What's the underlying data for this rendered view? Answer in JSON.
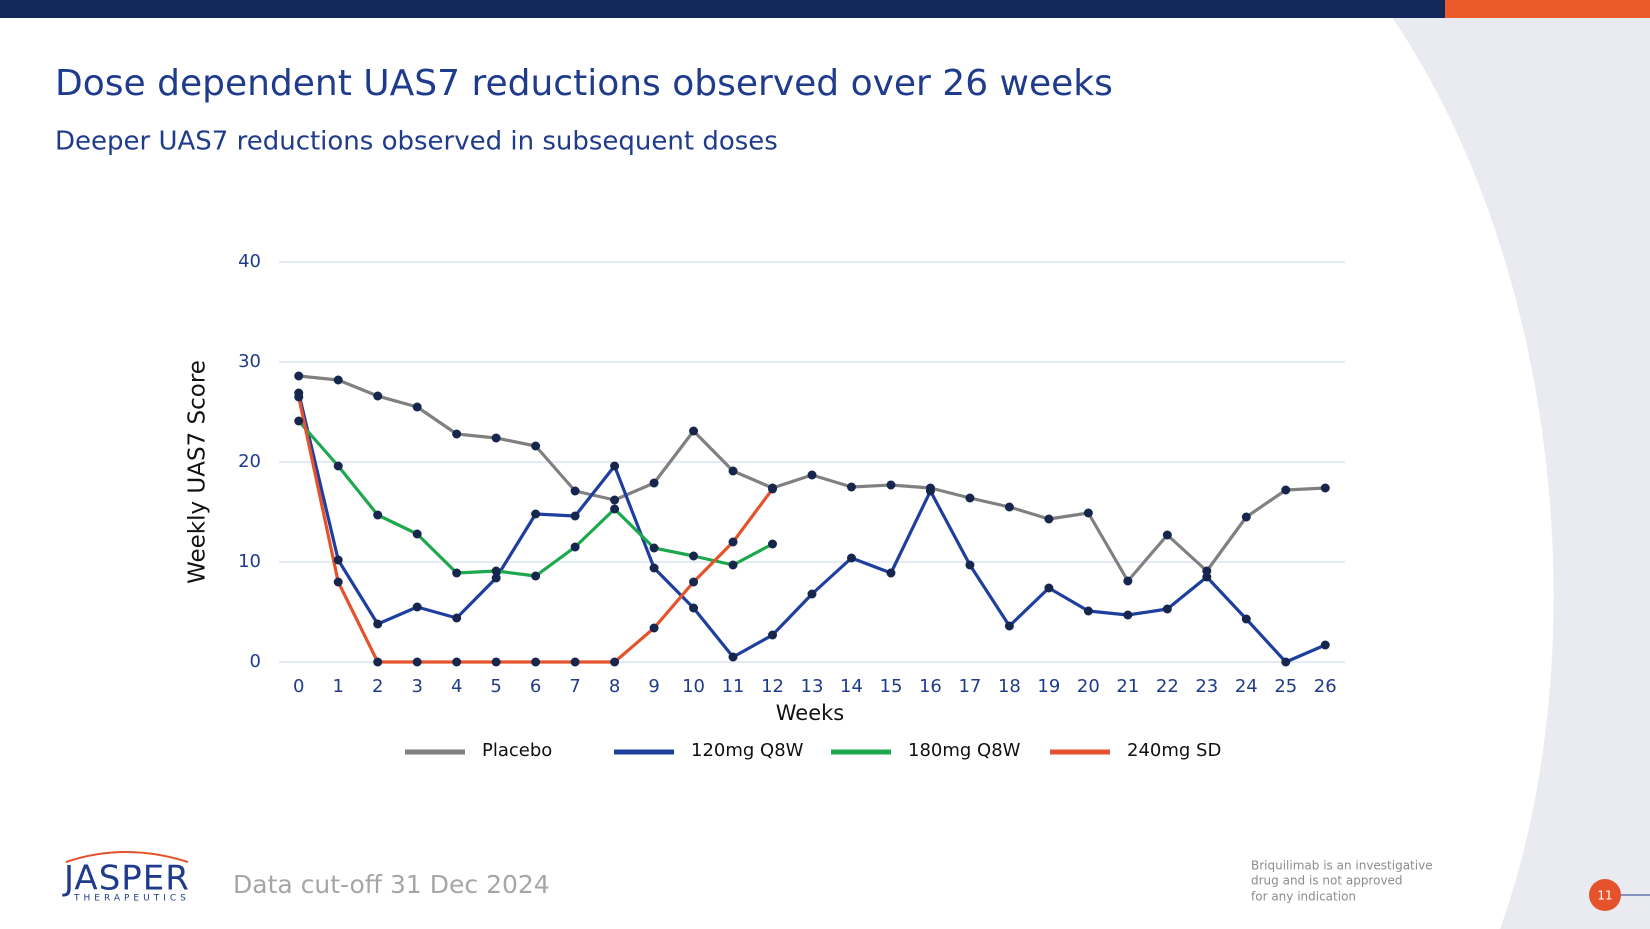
{
  "chart_data": {
    "type": "line",
    "title": "Dose dependent UAS7 reductions observed over 26 weeks",
    "subtitle": "Deeper UAS7 reductions observed in subsequent doses",
    "x_label": "Weeks",
    "y_label": "Weekly UAS7 Score",
    "categories": [
      "0",
      "1",
      "2",
      "3",
      "4",
      "5",
      "6",
      "7",
      "8",
      "9",
      "10",
      "11",
      "12",
      "13",
      "14",
      "15",
      "16",
      "17",
      "18",
      "19",
      "20",
      "21",
      "22",
      "23",
      "24",
      "25",
      "26"
    ],
    "ylim": [
      0,
      40
    ],
    "yticks": [
      0,
      10,
      20,
      30,
      40
    ],
    "grid": true,
    "marker_color": "#16264d",
    "series": [
      {
        "name": "Placebo",
        "color": "#808080",
        "values": [
          28.6,
          28.2,
          26.6,
          25.5,
          22.8,
          22.4,
          21.6,
          17.1,
          16.2,
          17.9,
          23.1,
          19.1,
          17.4,
          18.7,
          17.5,
          17.7,
          17.4,
          16.4,
          15.5,
          14.3,
          14.9,
          8.1,
          12.7,
          9.1,
          14.5,
          17.2,
          17.4
        ]
      },
      {
        "name": "120mg Q8W",
        "color": "#1e3f9e",
        "values": [
          26.9,
          10.2,
          3.8,
          5.5,
          4.4,
          8.4,
          14.8,
          14.6,
          19.6,
          9.4,
          5.4,
          0.5,
          2.7,
          6.8,
          10.4,
          8.9,
          17.1,
          9.7,
          3.6,
          7.4,
          5.1,
          4.7,
          5.3,
          8.5,
          4.3,
          0,
          1.7
        ]
      },
      {
        "name": "180mg Q8W",
        "color": "#1ea84e",
        "values": [
          24.1,
          19.6,
          14.7,
          12.8,
          8.9,
          9.1,
          8.6,
          11.5,
          15.3,
          11.4,
          10.6,
          9.7,
          11.8,
          null,
          null,
          null,
          null,
          null,
          null,
          null,
          null,
          null,
          null,
          null,
          null,
          null,
          null
        ]
      },
      {
        "name": "240mg SD",
        "color": "#e4532b",
        "values": [
          26.5,
          8.0,
          0,
          0,
          0,
          0,
          0,
          0,
          0,
          3.4,
          8.0,
          12.0,
          17.3,
          null,
          null,
          null,
          null,
          null,
          null,
          null,
          null,
          null,
          null,
          null,
          null,
          null,
          null
        ]
      }
    ]
  },
  "logo": {
    "name": "JASPER",
    "tagline": "THERAPEUTICS"
  },
  "footer": {
    "cutoff": "Data cut-off 31 Dec 2024",
    "disclaimer": [
      "Briquilimab is an investigative",
      "drug and is not approved",
      "for any indication"
    ],
    "page_number": "11"
  }
}
